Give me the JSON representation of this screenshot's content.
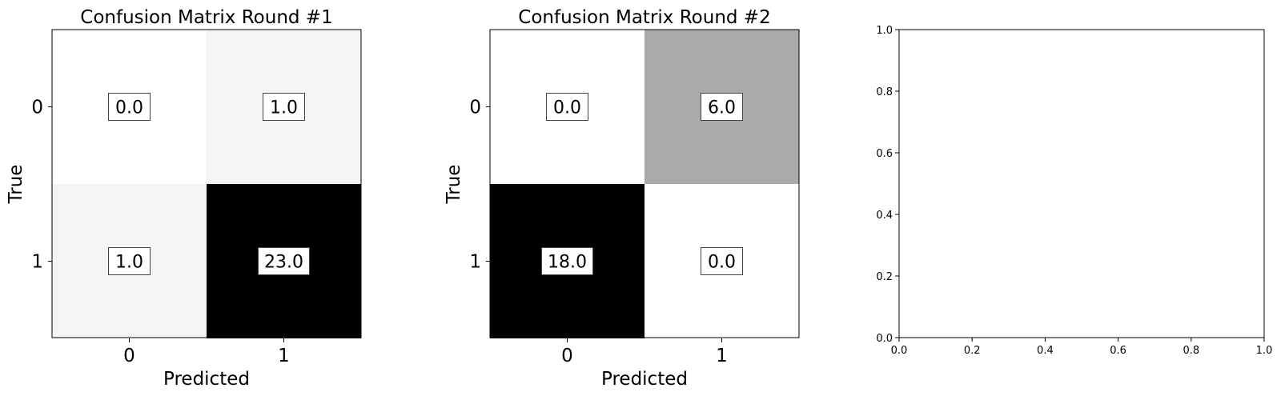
{
  "chart_data": [
    {
      "type": "heatmap",
      "title": "Confusion Matrix Round #1",
      "xlabel": "Predicted",
      "ylabel": "True",
      "x_categories": [
        "0",
        "1"
      ],
      "y_categories": [
        "0",
        "1"
      ],
      "values": [
        [
          0.0,
          1.0
        ],
        [
          1.0,
          23.0
        ]
      ],
      "cell_labels": [
        [
          "0.0",
          "1.0"
        ],
        [
          "1.0",
          "23.0"
        ]
      ],
      "colormap": "greys",
      "grid": false
    },
    {
      "type": "heatmap",
      "title": "Confusion Matrix Round #2",
      "xlabel": "Predicted",
      "ylabel": "True",
      "x_categories": [
        "0",
        "1"
      ],
      "y_categories": [
        "0",
        "1"
      ],
      "values": [
        [
          0.0,
          6.0
        ],
        [
          18.0,
          0.0
        ]
      ],
      "cell_labels": [
        [
          "0.0",
          "6.0"
        ],
        [
          "18.0",
          "0.0"
        ]
      ],
      "colormap": "greys",
      "grid": false
    },
    {
      "type": "scatter",
      "title": "",
      "xlabel": "",
      "ylabel": "",
      "xlim": [
        0.0,
        1.0
      ],
      "ylim": [
        0.0,
        1.0
      ],
      "x_ticks": [
        "0.0",
        "0.2",
        "0.4",
        "0.6",
        "0.8",
        "1.0"
      ],
      "y_ticks": [
        "0.0",
        "0.2",
        "0.4",
        "0.6",
        "0.8",
        "1.0"
      ],
      "series": [],
      "grid": false
    }
  ]
}
